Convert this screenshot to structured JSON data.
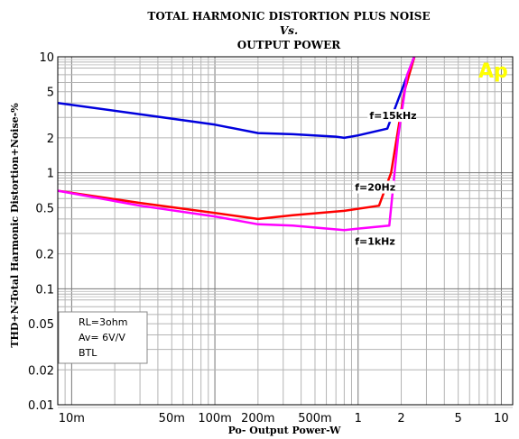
{
  "chart_data": {
    "type": "line",
    "title": "TOTAL HARMONIC DISTORTION PLUS NOISE",
    "title_vs": "Vs.",
    "subtitle": "OUTPUT POWER",
    "xlabel": "Po- Output Power-W",
    "ylabel": "THD+N-Total Harmonic Distortion+Noise-%",
    "x_scale": "log",
    "y_scale": "log",
    "xlim": [
      0.008,
      12
    ],
    "ylim": [
      0.01,
      10
    ],
    "grid": true,
    "x_ticks": [
      {
        "value": 0.01,
        "label": "10m"
      },
      {
        "value": 0.05,
        "label": "50m"
      },
      {
        "value": 0.1,
        "label": "100m"
      },
      {
        "value": 0.2,
        "label": "200m"
      },
      {
        "value": 0.5,
        "label": "500m"
      },
      {
        "value": 1,
        "label": "1"
      },
      {
        "value": 2,
        "label": "2"
      },
      {
        "value": 5,
        "label": "5"
      },
      {
        "value": 10,
        "label": "10"
      }
    ],
    "y_ticks": [
      {
        "value": 0.01,
        "label": "0.01"
      },
      {
        "value": 0.02,
        "label": "0.02"
      },
      {
        "value": 0.05,
        "label": "0.05"
      },
      {
        "value": 0.1,
        "label": "0.1"
      },
      {
        "value": 0.2,
        "label": "0.2"
      },
      {
        "value": 0.5,
        "label": "0.5"
      },
      {
        "value": 1,
        "label": "1"
      },
      {
        "value": 2,
        "label": "2"
      },
      {
        "value": 5,
        "label": "5"
      },
      {
        "value": 10,
        "label": "10"
      }
    ],
    "series": [
      {
        "name": "f=15kHz",
        "color": "#0000dd",
        "x": [
          0.008,
          0.03,
          0.1,
          0.2,
          0.35,
          0.7,
          0.8,
          1.0,
          1.6,
          2.0,
          2.5
        ],
        "y": [
          4.0,
          3.2,
          2.6,
          2.2,
          2.15,
          2.05,
          2.0,
          2.1,
          2.4,
          5.0,
          10.5
        ]
      },
      {
        "name": "f=20Hz",
        "color": "#ff0000",
        "x": [
          0.008,
          0.03,
          0.1,
          0.2,
          0.35,
          0.8,
          1.4,
          1.7,
          2.1,
          2.5
        ],
        "y": [
          0.7,
          0.55,
          0.45,
          0.4,
          0.43,
          0.47,
          0.52,
          1.0,
          5.0,
          10.5
        ]
      },
      {
        "name": "f=1kHz",
        "color": "#ff00ff",
        "x": [
          0.008,
          0.03,
          0.1,
          0.2,
          0.35,
          0.8,
          1.0,
          1.65,
          1.9,
          2.2,
          2.5
        ],
        "y": [
          0.7,
          0.52,
          0.42,
          0.36,
          0.35,
          0.32,
          0.33,
          0.35,
          2.0,
          7.0,
          10.5
        ]
      }
    ],
    "annotations": [
      {
        "text": "f=15kHz",
        "x": 1.2,
        "y": 2.9
      },
      {
        "text": "f=20Hz",
        "x": 0.95,
        "y": 0.7
      },
      {
        "text": "f=1kHz",
        "x": 0.95,
        "y": 0.24
      }
    ],
    "legend_box": {
      "position": "bottom-left",
      "lines": [
        "RL=3ohm",
        "Av= 6V/V",
        "BTL"
      ]
    },
    "logo": {
      "text": "Ap",
      "color": "#ffff00"
    }
  }
}
